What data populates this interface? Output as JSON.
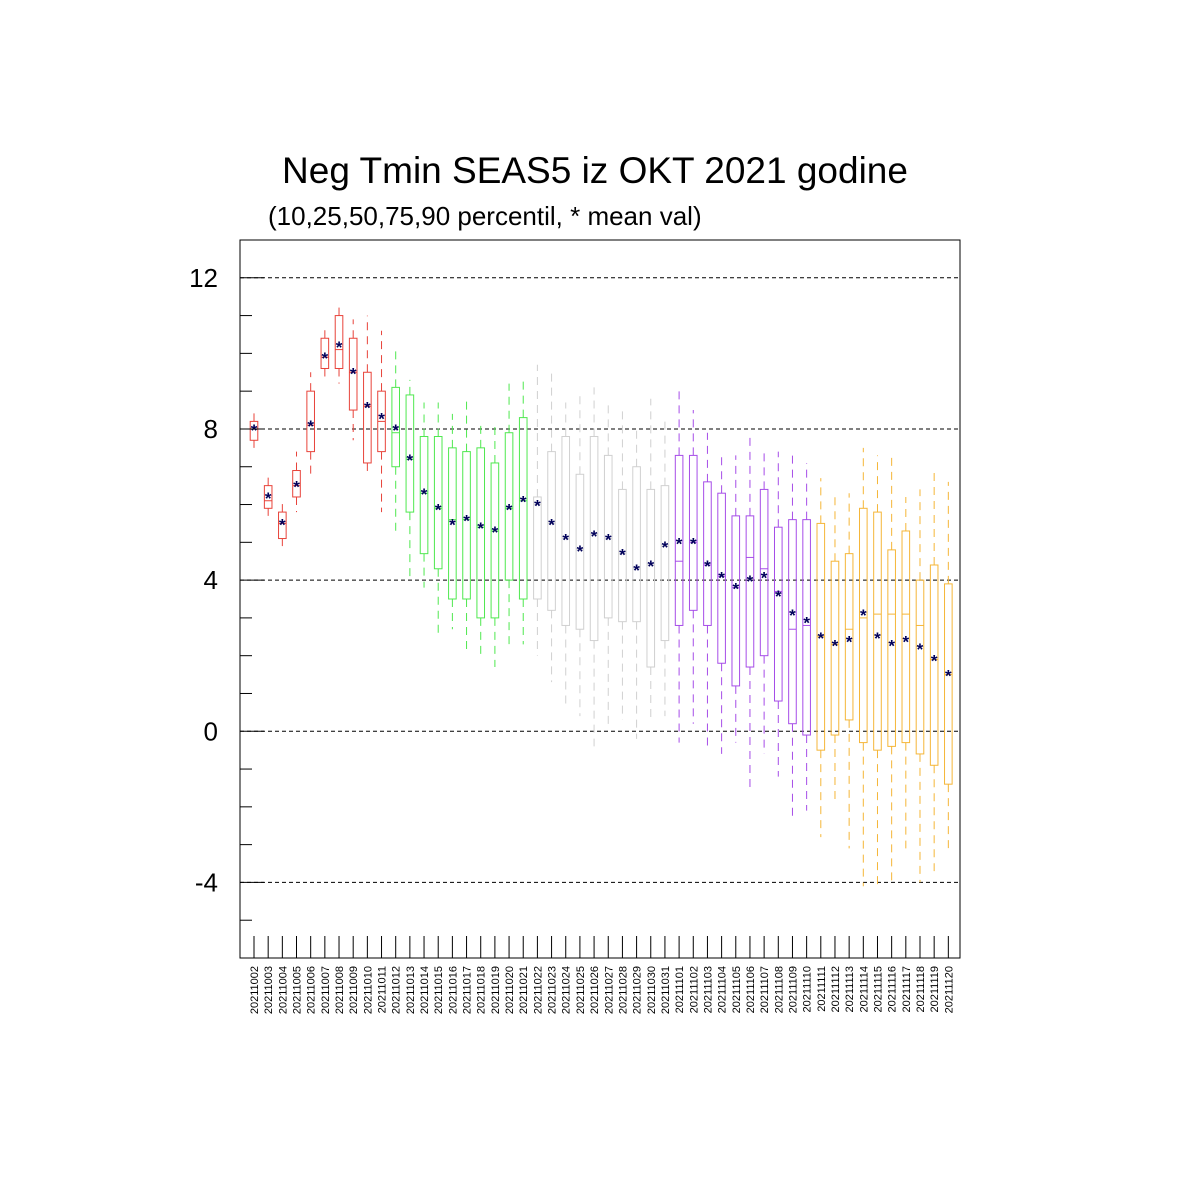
{
  "chart_data": {
    "type": "boxplot",
    "title": "Neg Tmin SEAS5 iz OKT 2021 godine",
    "subtitle": "(10,25,50,75,90 percentil, * mean val)",
    "xlabel": "",
    "ylabel": "",
    "ylim": [
      -6,
      13
    ],
    "yticks": [
      -4,
      0,
      4,
      8,
      12
    ],
    "grid": "horizontal dashed at major ticks",
    "colors": {
      "red": "#e8433a",
      "green": "#4fe84f",
      "gray": "#d0d0d0",
      "purple": "#a64de8",
      "orange": "#f5b638",
      "mean_marker": "#00005a"
    },
    "categories": [
      "20211002",
      "20211003",
      "20211004",
      "20211005",
      "20211006",
      "20211007",
      "20211008",
      "20211009",
      "20211010",
      "20211011",
      "20211012",
      "20211013",
      "20211014",
      "20211015",
      "20211016",
      "20211017",
      "20211018",
      "20211019",
      "20211020",
      "20211021",
      "20211022",
      "20211023",
      "20211024",
      "20211025",
      "20211026",
      "20211027",
      "20211028",
      "20211029",
      "20211030",
      "20211031",
      "20211101",
      "20211102",
      "20211103",
      "20211104",
      "20211105",
      "20211106",
      "20211107",
      "20211108",
      "20211109",
      "20211110",
      "20211111",
      "20211112",
      "20211113",
      "20211114",
      "20211115",
      "20211116",
      "20211117",
      "20211118",
      "20211119",
      "20211120"
    ],
    "groups": [
      "red",
      "red",
      "red",
      "red",
      "red",
      "red",
      "red",
      "red",
      "red",
      "red",
      "green",
      "green",
      "green",
      "green",
      "green",
      "green",
      "green",
      "green",
      "green",
      "green",
      "gray",
      "gray",
      "gray",
      "gray",
      "gray",
      "gray",
      "gray",
      "gray",
      "gray",
      "gray",
      "purple",
      "purple",
      "purple",
      "purple",
      "purple",
      "purple",
      "purple",
      "purple",
      "purple",
      "purple",
      "orange",
      "orange",
      "orange",
      "orange",
      "orange",
      "orange",
      "orange",
      "orange",
      "orange",
      "orange"
    ],
    "p10": [
      7.5,
      5.7,
      4.9,
      5.8,
      6.8,
      9.3,
      9.2,
      7.7,
      6.8,
      5.8,
      5.3,
      4.1,
      3.8,
      2.6,
      2.7,
      2.1,
      1.9,
      1.7,
      2.2,
      2.3,
      2.0,
      1.3,
      0.6,
      0.4,
      -0.4,
      0.1,
      0.3,
      -0.2,
      0.3,
      0.4,
      -0.3,
      0.2,
      -0.5,
      -0.6,
      -0.3,
      -1.6,
      -0.6,
      -1.2,
      -2.3,
      -2.1,
      -2.8,
      -1.9,
      -3.1,
      -4.1,
      -4.1,
      -4.1,
      -3.1,
      -4.0,
      -3.7,
      -3.1
    ],
    "p25": [
      7.7,
      5.9,
      5.1,
      6.2,
      7.4,
      9.6,
      9.6,
      8.5,
      7.1,
      7.4,
      7.0,
      5.8,
      4.7,
      4.3,
      3.5,
      3.5,
      3.0,
      3.0,
      4.0,
      3.5,
      3.5,
      3.2,
      2.8,
      2.7,
      2.4,
      3.0,
      2.9,
      2.9,
      1.7,
      2.4,
      2.8,
      3.2,
      2.8,
      1.8,
      1.2,
      1.7,
      2.0,
      0.8,
      0.2,
      -0.1,
      -0.5,
      -0.1,
      0.3,
      -0.3,
      -0.5,
      -0.4,
      -0.3,
      -0.6,
      -0.9,
      -1.4
    ],
    "p50": [
      8.0,
      6.1,
      5.5,
      6.5,
      8.1,
      9.9,
      10.1,
      9.5,
      8.6,
      8.2,
      7.9,
      7.2,
      6.3,
      5.9,
      5.6,
      5.6,
      5.4,
      5.3,
      5.9,
      6.1,
      6.0,
      5.5,
      5.1,
      4.8,
      5.2,
      5.1,
      4.7,
      4.3,
      4.4,
      4.9,
      4.5,
      5.0,
      4.4,
      4.1,
      3.8,
      4.6,
      4.3,
      3.7,
      2.7,
      2.8,
      2.5,
      2.3,
      2.7,
      3.0,
      3.1,
      3.1,
      3.1,
      2.8,
      1.9,
      1.5
    ],
    "p75": [
      8.2,
      6.5,
      5.8,
      6.9,
      9.0,
      10.4,
      11.0,
      10.4,
      9.5,
      9.0,
      9.1,
      8.9,
      7.8,
      7.8,
      7.5,
      7.4,
      7.5,
      7.1,
      7.9,
      8.3,
      6.2,
      7.4,
      7.8,
      6.8,
      7.8,
      7.3,
      6.4,
      7.0,
      6.4,
      6.5,
      7.3,
      7.3,
      6.6,
      6.3,
      5.7,
      5.7,
      6.4,
      5.4,
      5.6,
      5.6,
      5.5,
      4.5,
      4.7,
      5.9,
      5.8,
      4.8,
      5.3,
      4.0,
      4.4,
      3.9
    ],
    "p90": [
      8.5,
      6.8,
      6.1,
      7.4,
      9.5,
      10.7,
      11.3,
      10.9,
      11.0,
      10.6,
      10.2,
      9.3,
      8.7,
      8.7,
      8.4,
      8.8,
      8.2,
      8.2,
      9.2,
      9.3,
      9.7,
      9.5,
      8.7,
      8.9,
      9.1,
      8.7,
      8.5,
      8.0,
      8.8,
      8.2,
      9.1,
      8.5,
      7.9,
      7.4,
      7.3,
      7.9,
      7.5,
      7.4,
      7.4,
      7.1,
      6.7,
      6.3,
      6.3,
      7.5,
      7.3,
      7.3,
      6.2,
      6.4,
      6.9,
      6.6
    ],
    "mean": [
      8.0,
      6.2,
      5.5,
      6.5,
      8.1,
      9.9,
      10.2,
      9.5,
      8.6,
      8.3,
      8.0,
      7.2,
      6.3,
      5.9,
      5.5,
      5.6,
      5.4,
      5.3,
      5.9,
      6.1,
      6.0,
      5.5,
      5.1,
      4.8,
      5.2,
      5.1,
      4.7,
      4.3,
      4.4,
      4.9,
      5.0,
      5.0,
      4.4,
      4.1,
      3.8,
      4.0,
      4.1,
      3.6,
      3.1,
      2.9,
      2.5,
      2.3,
      2.4,
      3.1,
      2.5,
      2.3,
      2.4,
      2.2,
      1.9,
      1.5
    ]
  }
}
